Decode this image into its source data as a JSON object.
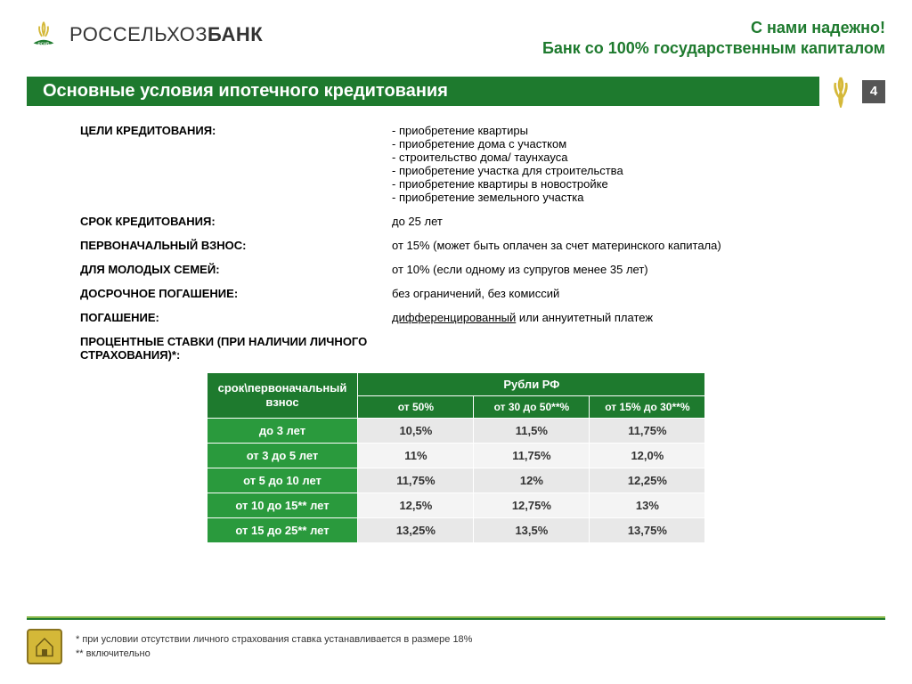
{
  "logo": {
    "name1": "РОССЕЛЬХОЗ",
    "name2": "БАНК"
  },
  "slogan": {
    "line1": "С нами надежно!",
    "line2": "Банк со 100% государственным капиталом"
  },
  "title": "Основные условия ипотечного кредитования",
  "page_number": "4",
  "defs": [
    {
      "label": "ЦЕЛИ КРЕДИТОВАНИЯ:",
      "lines": [
        "- приобретение квартиры",
        "- приобретение дома с участком",
        "- строительство дома/ таунхауса",
        "- приобретение участка для строительства",
        "- приобретение квартиры в новостройке",
        "- приобретение земельного участка"
      ]
    },
    {
      "label": "СРОК КРЕДИТОВАНИЯ:",
      "lines": [
        "до 25 лет"
      ]
    },
    {
      "label": "ПЕРВОНАЧАЛЬНЫЙ ВЗНОС:",
      "lines": [
        "от 15% (может быть оплачен за счет материнского капитала)"
      ]
    },
    {
      "label": "ДЛЯ МОЛОДЫХ СЕМЕЙ:",
      "lines": [
        "от 10% (если одному из супругов менее 35 лет)"
      ]
    },
    {
      "label": "ДОСРОЧНОЕ ПОГАШЕНИЕ:",
      "lines": [
        "без ограничений, без комиссий"
      ]
    },
    {
      "label": "ПОГАШЕНИЕ:",
      "lines": [
        "<u>дифференцированный</u> или аннуитетный платеж"
      ],
      "html": true
    },
    {
      "label": "ПРОЦЕНТНЫЕ СТАВКИ (при наличии личного страхования)*:",
      "lines": []
    }
  ],
  "rates": {
    "corner": "срок\\первоначальный взнос",
    "group": "Рубли РФ",
    "columns": [
      "от 50%",
      "от 30 до 50**%",
      "от 15% до 30**%"
    ],
    "rows": [
      {
        "head": "до 3 лет",
        "cells": [
          "10,5%",
          "11,5%",
          "11,75%"
        ]
      },
      {
        "head": "от 3 до 5 лет",
        "cells": [
          "11%",
          "11,75%",
          "12,0%"
        ]
      },
      {
        "head": "от 5 до 10 лет",
        "cells": [
          "11,75%",
          "12%",
          "12,25%"
        ]
      },
      {
        "head": "от 10 до 15** лет",
        "cells": [
          "12,5%",
          "12,75%",
          "13%"
        ]
      },
      {
        "head": "от 15 до 25** лет",
        "cells": [
          "13,25%",
          "13,5%",
          "13,75%"
        ]
      }
    ],
    "colors": {
      "head_bg": "#1e7a2e",
      "row_head_bg": "#2a9a3d",
      "cell_bg_odd": "#e8e8e8",
      "cell_bg_even": "#f4f4f4"
    }
  },
  "footnotes": {
    "line1": "* при условии  отсутствии личного страхования ставка устанавливается  в размере 18%",
    "line2": "** включительно"
  },
  "colors": {
    "brand_green": "#1e7a2e",
    "accent_green": "#8bb84a",
    "gold": "#d4b838"
  }
}
